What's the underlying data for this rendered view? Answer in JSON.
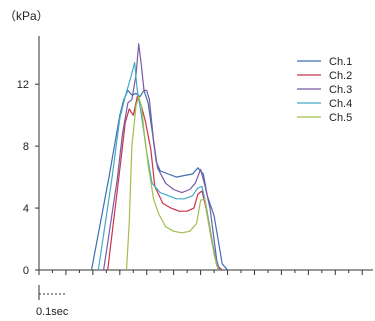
{
  "chart_data": {
    "type": "line",
    "title": "",
    "ylabel": "（kPa）",
    "xlabel": "",
    "ylim": [
      0,
      15.5
    ],
    "xlim": [
      0,
      1.24
    ],
    "yticks": [
      0,
      4,
      8,
      12
    ],
    "xtick_step": 0.1,
    "scale_bar": {
      "label": "0.1sec",
      "length": 0.1
    },
    "grid": false,
    "legend_position": "top-right",
    "series": [
      {
        "name": "Ch.1",
        "color": "#3f6fb0",
        "points": [
          [
            0.195,
            0
          ],
          [
            0.26,
            6.0
          ],
          [
            0.3,
            10.0
          ],
          [
            0.315,
            11.0
          ],
          [
            0.33,
            11.6
          ],
          [
            0.345,
            11.3
          ],
          [
            0.36,
            11.4
          ],
          [
            0.375,
            11.2
          ],
          [
            0.39,
            11.6
          ],
          [
            0.405,
            10.8
          ],
          [
            0.42,
            9.0
          ],
          [
            0.435,
            7.0
          ],
          [
            0.45,
            6.4
          ],
          [
            0.48,
            6.2
          ],
          [
            0.51,
            6.0
          ],
          [
            0.54,
            6.1
          ],
          [
            0.57,
            6.2
          ],
          [
            0.59,
            6.6
          ],
          [
            0.61,
            6.2
          ],
          [
            0.625,
            4.8
          ],
          [
            0.65,
            3.5
          ],
          [
            0.68,
            0.4
          ],
          [
            0.7,
            0
          ]
        ]
      },
      {
        "name": "Ch.2",
        "color": "#c8334a",
        "points": [
          [
            0.255,
            0
          ],
          [
            0.3,
            6.5
          ],
          [
            0.32,
            9.5
          ],
          [
            0.335,
            10.4
          ],
          [
            0.35,
            10.0
          ],
          [
            0.365,
            11.2
          ],
          [
            0.38,
            10.6
          ],
          [
            0.395,
            9.6
          ],
          [
            0.415,
            7.8
          ],
          [
            0.43,
            5.4
          ],
          [
            0.46,
            4.3
          ],
          [
            0.49,
            4.0
          ],
          [
            0.52,
            3.8
          ],
          [
            0.55,
            3.8
          ],
          [
            0.575,
            4.0
          ],
          [
            0.59,
            4.9
          ],
          [
            0.605,
            5.1
          ],
          [
            0.62,
            4.0
          ],
          [
            0.64,
            2.0
          ],
          [
            0.66,
            0.3
          ],
          [
            0.68,
            0
          ]
        ]
      },
      {
        "name": "Ch.3",
        "color": "#7a5aa6",
        "points": [
          [
            0.24,
            0
          ],
          [
            0.29,
            5.8
          ],
          [
            0.31,
            8.8
          ],
          [
            0.33,
            10.8
          ],
          [
            0.345,
            11.0
          ],
          [
            0.36,
            12.6
          ],
          [
            0.37,
            14.6
          ],
          [
            0.38,
            13.2
          ],
          [
            0.39,
            11.6
          ],
          [
            0.4,
            11.6
          ],
          [
            0.41,
            11.0
          ],
          [
            0.425,
            8.4
          ],
          [
            0.44,
            6.6
          ],
          [
            0.47,
            5.6
          ],
          [
            0.5,
            5.2
          ],
          [
            0.53,
            5.0
          ],
          [
            0.56,
            5.2
          ],
          [
            0.58,
            5.6
          ],
          [
            0.6,
            6.5
          ],
          [
            0.615,
            5.5
          ],
          [
            0.635,
            4.0
          ],
          [
            0.66,
            0.6
          ],
          [
            0.67,
            0
          ]
        ]
      },
      {
        "name": "Ch.4",
        "color": "#45a9c6",
        "points": [
          [
            0.22,
            0
          ],
          [
            0.27,
            5.8
          ],
          [
            0.3,
            9.8
          ],
          [
            0.32,
            11.2
          ],
          [
            0.34,
            12.4
          ],
          [
            0.355,
            13.4
          ],
          [
            0.365,
            11.6
          ],
          [
            0.38,
            10.0
          ],
          [
            0.4,
            7.6
          ],
          [
            0.42,
            5.6
          ],
          [
            0.45,
            5.0
          ],
          [
            0.48,
            4.8
          ],
          [
            0.51,
            4.6
          ],
          [
            0.54,
            4.6
          ],
          [
            0.57,
            4.8
          ],
          [
            0.59,
            5.3
          ],
          [
            0.605,
            5.4
          ],
          [
            0.62,
            4.2
          ],
          [
            0.64,
            2.2
          ],
          [
            0.66,
            0.3
          ],
          [
            0.67,
            0
          ]
        ]
      },
      {
        "name": "Ch.5",
        "color": "#9fbf4a",
        "points": [
          [
            0.325,
            0
          ],
          [
            0.335,
            3.0
          ],
          [
            0.345,
            8.0
          ],
          [
            0.36,
            10.6
          ],
          [
            0.37,
            11.2
          ],
          [
            0.38,
            10.6
          ],
          [
            0.39,
            9.0
          ],
          [
            0.405,
            6.8
          ],
          [
            0.425,
            4.6
          ],
          [
            0.445,
            3.6
          ],
          [
            0.47,
            2.8
          ],
          [
            0.5,
            2.5
          ],
          [
            0.53,
            2.4
          ],
          [
            0.56,
            2.5
          ],
          [
            0.585,
            3.0
          ],
          [
            0.6,
            4.5
          ],
          [
            0.615,
            4.6
          ],
          [
            0.63,
            3.0
          ],
          [
            0.65,
            1.0
          ],
          [
            0.665,
            0
          ]
        ]
      }
    ]
  }
}
